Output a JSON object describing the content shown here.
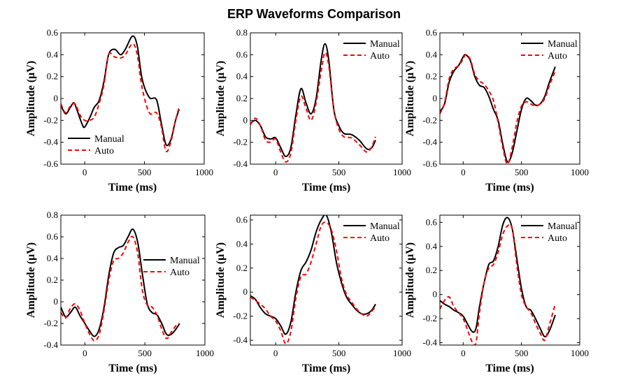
{
  "title": "ERP Waveforms Comparison",
  "chart_data": [
    {
      "type": "line",
      "xlabel": "Time (ms)",
      "ylabel": "Amplitude (μV)",
      "xlim": [
        -200,
        1000
      ],
      "ylim": [
        -0.6,
        0.6
      ],
      "xticks": [
        0,
        500,
        1000
      ],
      "xtick_labels": [
        "0",
        "500",
        "1000"
      ],
      "yticks": [
        -0.6,
        -0.4,
        -0.2,
        0,
        0.2,
        0.4,
        0.6
      ],
      "ytick_labels": [
        "-0.6",
        "-0.4",
        "-0.2",
        "0",
        "0.2",
        "0.4",
        "0.6"
      ],
      "legend_position": "bottom-left",
      "series": [
        {
          "name": "Manual",
          "color": "#000000",
          "style": "solid",
          "x": [
            -200,
            -160,
            -120,
            -90,
            -60,
            -20,
            0,
            40,
            80,
            120,
            160,
            200,
            250,
            300,
            340,
            400,
            440,
            480,
            540,
            600,
            640,
            680,
            720,
            760,
            790
          ],
          "y": [
            -0.06,
            -0.14,
            -0.08,
            -0.04,
            -0.12,
            -0.24,
            -0.26,
            -0.18,
            -0.08,
            -0.02,
            0.15,
            0.4,
            0.45,
            0.4,
            0.45,
            0.57,
            0.48,
            0.18,
            0.01,
            -0.01,
            -0.22,
            -0.42,
            -0.38,
            -0.2,
            -0.1
          ]
        },
        {
          "name": "Auto",
          "color": "#ff0000",
          "style": "dashed",
          "x": [
            -200,
            -160,
            -120,
            -80,
            -40,
            0,
            40,
            80,
            120,
            160,
            200,
            250,
            300,
            340,
            400,
            440,
            480,
            540,
            600,
            640,
            680,
            720,
            760,
            790
          ],
          "y": [
            -0.05,
            -0.13,
            -0.07,
            -0.05,
            -0.15,
            -0.2,
            -0.2,
            -0.17,
            -0.05,
            0.12,
            0.4,
            0.38,
            0.37,
            0.4,
            0.5,
            0.4,
            0.1,
            -0.13,
            -0.13,
            -0.25,
            -0.48,
            -0.4,
            -0.2,
            -0.08
          ]
        }
      ]
    },
    {
      "type": "line",
      "xlabel": "Time (ms)",
      "ylabel": "Amplitude (μV)",
      "xlim": [
        -200,
        1000
      ],
      "ylim": [
        -0.4,
        0.8
      ],
      "xticks": [
        0,
        500,
        1000
      ],
      "xtick_labels": [
        "0",
        "500",
        "1000"
      ],
      "yticks": [
        -0.4,
        -0.2,
        0,
        0.2,
        0.4,
        0.6,
        0.8
      ],
      "ytick_labels": [
        "-0.4",
        "-0.2",
        "0",
        "0.2",
        "0.4",
        "0.6",
        "0.8"
      ],
      "legend_position": "top-right",
      "series": [
        {
          "name": "Manual",
          "color": "#000000",
          "style": "solid",
          "x": [
            -200,
            -160,
            -120,
            -80,
            -40,
            0,
            40,
            80,
            120,
            160,
            200,
            240,
            280,
            320,
            360,
            390,
            420,
            460,
            500,
            540,
            600,
            660,
            720,
            760,
            790
          ],
          "y": [
            -0.03,
            0.0,
            -0.05,
            -0.15,
            -0.17,
            -0.16,
            -0.25,
            -0.33,
            -0.25,
            0.05,
            0.29,
            0.16,
            0.06,
            0.2,
            0.55,
            0.7,
            0.55,
            0.1,
            -0.05,
            -0.12,
            -0.13,
            -0.18,
            -0.26,
            -0.25,
            -0.18
          ]
        },
        {
          "name": "Auto",
          "color": "#ff0000",
          "style": "dashed",
          "x": [
            -200,
            -160,
            -120,
            -80,
            -40,
            0,
            40,
            80,
            120,
            160,
            200,
            240,
            280,
            320,
            360,
            390,
            420,
            460,
            500,
            540,
            600,
            660,
            720,
            760,
            790
          ],
          "y": [
            -0.04,
            0.02,
            -0.05,
            -0.18,
            -0.2,
            -0.17,
            -0.29,
            -0.38,
            -0.3,
            0.0,
            0.22,
            0.11,
            0.0,
            0.16,
            0.45,
            0.62,
            0.5,
            0.1,
            -0.08,
            -0.15,
            -0.16,
            -0.22,
            -0.29,
            -0.24,
            -0.15
          ]
        }
      ]
    },
    {
      "type": "line",
      "xlabel": "Time (ms)",
      "ylabel": "Amplitude (μV)",
      "xlim": [
        -200,
        1000
      ],
      "ylim": [
        -0.6,
        0.6
      ],
      "xticks": [
        0,
        500,
        1000
      ],
      "xtick_labels": [
        "0",
        "500",
        "1000"
      ],
      "yticks": [
        -0.6,
        -0.4,
        -0.2,
        0,
        0.2,
        0.4,
        0.6
      ],
      "ytick_labels": [
        "-0.6",
        "-0.4",
        "-0.2",
        "0",
        "0.2",
        "0.4",
        "0.6"
      ],
      "legend_position": "top-right",
      "series": [
        {
          "name": "Manual",
          "color": "#000000",
          "style": "solid",
          "x": [
            -200,
            -160,
            -120,
            -80,
            -40,
            0,
            20,
            60,
            100,
            140,
            180,
            220,
            260,
            300,
            340,
            380,
            420,
            460,
            500,
            540,
            580,
            620,
            660,
            700,
            740,
            790
          ],
          "y": [
            -0.12,
            -0.05,
            0.15,
            0.25,
            0.3,
            0.38,
            0.4,
            0.35,
            0.2,
            0.12,
            0.1,
            0.02,
            -0.1,
            -0.2,
            -0.42,
            -0.58,
            -0.5,
            -0.3,
            -0.1,
            0.0,
            -0.02,
            -0.06,
            -0.05,
            0.02,
            0.15,
            0.29
          ]
        },
        {
          "name": "Auto",
          "color": "#ff0000",
          "style": "dashed",
          "x": [
            -200,
            -160,
            -120,
            -80,
            -40,
            0,
            20,
            60,
            100,
            140,
            180,
            220,
            260,
            300,
            340,
            380,
            420,
            460,
            500,
            540,
            580,
            620,
            660,
            700,
            740,
            790
          ],
          "y": [
            -0.14,
            -0.04,
            0.18,
            0.27,
            0.3,
            0.36,
            0.4,
            0.36,
            0.22,
            0.16,
            0.13,
            0.07,
            -0.02,
            -0.22,
            -0.45,
            -0.6,
            -0.45,
            -0.22,
            -0.07,
            -0.03,
            -0.05,
            -0.07,
            -0.05,
            0.0,
            0.12,
            0.25
          ]
        }
      ]
    },
    {
      "type": "line",
      "xlabel": "Time (ms)",
      "ylabel": "Amplitude (μV)",
      "xlim": [
        -200,
        1000
      ],
      "ylim": [
        -0.4,
        0.8
      ],
      "xticks": [
        0,
        500,
        1000
      ],
      "xtick_labels": [
        "0",
        "500",
        "1000"
      ],
      "yticks": [
        -0.4,
        -0.2,
        0,
        0.2,
        0.4,
        0.6,
        0.8
      ],
      "ytick_labels": [
        "-0.4",
        "-0.2",
        "0",
        "0.2",
        "0.4",
        "0.6",
        "0.8"
      ],
      "legend_position": "center-right",
      "series": [
        {
          "name": "Manual",
          "color": "#000000",
          "style": "solid",
          "x": [
            -200,
            -160,
            -120,
            -80,
            -40,
            0,
            40,
            80,
            120,
            160,
            200,
            240,
            280,
            320,
            360,
            400,
            440,
            480,
            520,
            560,
            600,
            640,
            680,
            720,
            760,
            790
          ],
          "y": [
            -0.05,
            -0.14,
            -0.1,
            -0.05,
            -0.13,
            -0.2,
            -0.27,
            -0.32,
            -0.25,
            -0.05,
            0.25,
            0.45,
            0.5,
            0.52,
            0.6,
            0.67,
            0.55,
            0.25,
            -0.02,
            -0.1,
            -0.12,
            -0.2,
            -0.3,
            -0.3,
            -0.25,
            -0.2
          ]
        },
        {
          "name": "Auto",
          "color": "#ff0000",
          "style": "dashed",
          "x": [
            -200,
            -160,
            -120,
            -80,
            -40,
            0,
            40,
            80,
            120,
            160,
            200,
            240,
            280,
            320,
            360,
            400,
            440,
            480,
            520,
            560,
            600,
            640,
            680,
            720,
            760,
            790
          ],
          "y": [
            -0.1,
            -0.15,
            -0.06,
            -0.02,
            -0.08,
            -0.2,
            -0.3,
            -0.36,
            -0.3,
            -0.08,
            0.2,
            0.38,
            0.4,
            0.45,
            0.55,
            0.6,
            0.45,
            0.1,
            -0.03,
            -0.05,
            -0.12,
            -0.25,
            -0.34,
            -0.28,
            -0.22,
            -0.2
          ]
        }
      ]
    },
    {
      "type": "line",
      "xlabel": "Time (ms)",
      "ylabel": "Amplitude (μV)",
      "xlim": [
        -200,
        1000
      ],
      "ylim": [
        -0.44,
        0.64
      ],
      "xticks": [
        0,
        500,
        1000
      ],
      "xtick_labels": [
        "0",
        "500",
        "1000"
      ],
      "yticks": [
        -0.4,
        -0.2,
        0,
        0.2,
        0.4,
        0.6
      ],
      "ytick_labels": [
        "-0.4",
        "-0.2",
        "0",
        "0.2",
        "0.4",
        "0.6"
      ],
      "legend_position": "top-right",
      "series": [
        {
          "name": "Manual",
          "color": "#000000",
          "style": "solid",
          "x": [
            -200,
            -160,
            -120,
            -80,
            -40,
            0,
            40,
            80,
            120,
            160,
            200,
            240,
            280,
            320,
            360,
            400,
            440,
            480,
            520,
            560,
            600,
            640,
            680,
            720,
            760,
            790
          ],
          "y": [
            -0.03,
            -0.06,
            -0.13,
            -0.18,
            -0.2,
            -0.22,
            -0.28,
            -0.35,
            -0.25,
            0.0,
            0.18,
            0.25,
            0.35,
            0.5,
            0.6,
            0.64,
            0.5,
            0.25,
            0.08,
            -0.04,
            -0.1,
            -0.15,
            -0.18,
            -0.18,
            -0.15,
            -0.1
          ]
        },
        {
          "name": "Auto",
          "color": "#ff0000",
          "style": "dashed",
          "x": [
            -200,
            -160,
            -120,
            -80,
            -40,
            0,
            40,
            80,
            120,
            160,
            200,
            240,
            280,
            320,
            360,
            400,
            440,
            480,
            520,
            560,
            600,
            640,
            680,
            720,
            760,
            790
          ],
          "y": [
            -0.04,
            -0.07,
            -0.1,
            -0.14,
            -0.2,
            -0.24,
            -0.32,
            -0.43,
            -0.33,
            -0.05,
            0.13,
            0.15,
            0.25,
            0.4,
            0.55,
            0.58,
            0.52,
            0.35,
            0.12,
            -0.02,
            -0.08,
            -0.14,
            -0.18,
            -0.2,
            -0.16,
            -0.12
          ]
        }
      ]
    },
    {
      "type": "line",
      "xlabel": "Time (ms)",
      "ylabel": "Amplitude (μV)",
      "xlim": [
        -200,
        1000
      ],
      "ylim": [
        -0.42,
        0.66
      ],
      "xticks": [
        0,
        500,
        1000
      ],
      "xtick_labels": [
        "0",
        "500",
        "1000"
      ],
      "yticks": [
        -0.4,
        -0.2,
        0,
        0.2,
        0.4,
        0.6
      ],
      "ytick_labels": [
        "-0.4",
        "-0.2",
        "0",
        "0.2",
        "0.4",
        "0.6"
      ],
      "legend_position": "top-right",
      "series": [
        {
          "name": "Manual",
          "color": "#000000",
          "style": "solid",
          "x": [
            -200,
            -160,
            -120,
            -80,
            -40,
            0,
            40,
            80,
            110,
            140,
            180,
            220,
            260,
            300,
            340,
            380,
            420,
            460,
            500,
            540,
            580,
            620,
            660,
            700,
            740,
            790
          ],
          "y": [
            -0.05,
            -0.08,
            -0.1,
            -0.13,
            -0.15,
            -0.18,
            -0.25,
            -0.31,
            -0.28,
            -0.1,
            0.1,
            0.25,
            0.28,
            0.4,
            0.58,
            0.64,
            0.55,
            0.3,
            0.05,
            -0.1,
            -0.13,
            -0.2,
            -0.28,
            -0.35,
            -0.3,
            -0.17
          ]
        },
        {
          "name": "Auto",
          "color": "#ff0000",
          "style": "dashed",
          "x": [
            -200,
            -160,
            -120,
            -80,
            -40,
            0,
            40,
            80,
            110,
            140,
            180,
            220,
            260,
            300,
            340,
            380,
            420,
            460,
            500,
            540,
            580,
            620,
            660,
            700,
            740,
            790
          ],
          "y": [
            -0.12,
            -0.05,
            -0.02,
            -0.1,
            -0.15,
            -0.2,
            -0.3,
            -0.4,
            -0.4,
            -0.15,
            0.1,
            0.22,
            0.25,
            0.35,
            0.5,
            0.57,
            0.55,
            0.25,
            0.0,
            -0.1,
            -0.15,
            -0.24,
            -0.32,
            -0.38,
            -0.25,
            -0.08
          ]
        }
      ]
    }
  ]
}
